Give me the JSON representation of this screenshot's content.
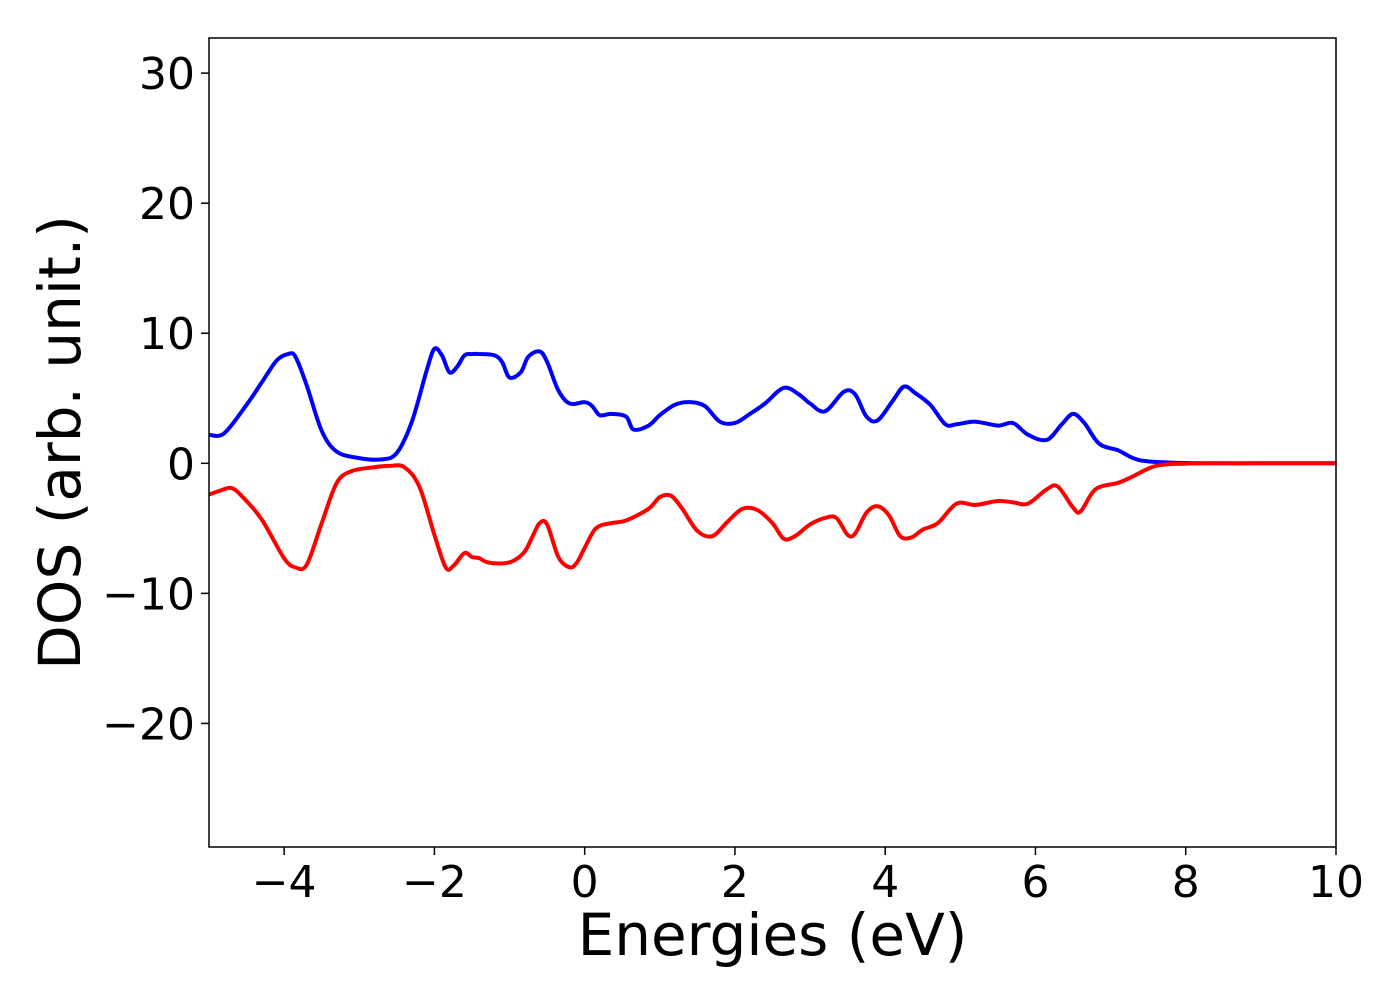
{
  "chart_data": {
    "type": "line",
    "title": "",
    "xlabel": "Energies (eV)",
    "ylabel": "DOS (arb. unit.)",
    "xlim": [
      -5,
      10
    ],
    "ylim": [
      -29.5,
      32.7
    ],
    "xticks": [
      -4,
      -2,
      0,
      2,
      4,
      6,
      8,
      10
    ],
    "yticks": [
      -20,
      -10,
      0,
      10,
      20,
      30
    ],
    "xtick_labels": [
      "−4",
      "−2",
      "0",
      "2",
      "4",
      "6",
      "8",
      "10"
    ],
    "ytick_labels": [
      "−20",
      "−10",
      "0",
      "10",
      "20",
      "30"
    ],
    "grid": false,
    "legend": "none",
    "series": [
      {
        "color": "#0000ff",
        "x": [
          -5.0,
          -4.8,
          -4.5,
          -4.3,
          -4.1,
          -3.95,
          -3.85,
          -3.7,
          -3.5,
          -3.3,
          -3.0,
          -2.7,
          -2.5,
          -2.3,
          -2.1,
          -2.0,
          -1.9,
          -1.8,
          -1.7,
          -1.6,
          -1.5,
          -1.4,
          -1.2,
          -1.1,
          -1.0,
          -0.85,
          -0.75,
          -0.6,
          -0.5,
          -0.35,
          -0.2,
          0.0,
          0.1,
          0.2,
          0.35,
          0.55,
          0.65,
          0.85,
          1.0,
          1.2,
          1.4,
          1.6,
          1.8,
          2.0,
          2.2,
          2.4,
          2.65,
          2.85,
          3.0,
          3.2,
          3.45,
          3.6,
          3.75,
          3.9,
          4.1,
          4.25,
          4.4,
          4.6,
          4.8,
          4.95,
          5.2,
          5.5,
          5.7,
          5.9,
          6.15,
          6.35,
          6.5,
          6.65,
          6.85,
          7.1,
          7.3,
          7.5,
          8.0,
          8.5,
          9.0,
          10.0
        ],
        "y": [
          2.2,
          2.3,
          4.5,
          6.2,
          7.9,
          8.4,
          8.2,
          6.0,
          2.5,
          0.9,
          0.4,
          0.3,
          0.8,
          3.2,
          7.2,
          8.8,
          8.3,
          7.0,
          7.4,
          8.3,
          8.4,
          8.4,
          8.3,
          7.8,
          6.6,
          7.0,
          8.2,
          8.6,
          7.8,
          5.6,
          4.6,
          4.7,
          4.4,
          3.7,
          3.8,
          3.6,
          2.6,
          2.9,
          3.7,
          4.5,
          4.7,
          4.4,
          3.2,
          3.1,
          3.8,
          4.6,
          5.8,
          5.3,
          4.6,
          4.0,
          5.5,
          5.3,
          3.6,
          3.3,
          4.8,
          5.9,
          5.4,
          4.5,
          3.0,
          3.0,
          3.2,
          2.9,
          3.1,
          2.2,
          1.8,
          3.0,
          3.8,
          3.1,
          1.5,
          1.0,
          0.4,
          0.15,
          0.02,
          0.0,
          0.0,
          0.0
        ]
      },
      {
        "color": "#ff0000",
        "x": [
          -5.0,
          -4.85,
          -4.7,
          -4.55,
          -4.3,
          -4.0,
          -3.85,
          -3.7,
          -3.5,
          -3.3,
          -3.1,
          -2.8,
          -2.6,
          -2.4,
          -2.2,
          -2.0,
          -1.85,
          -1.75,
          -1.6,
          -1.5,
          -1.4,
          -1.3,
          -1.1,
          -0.95,
          -0.8,
          -0.7,
          -0.6,
          -0.5,
          -0.35,
          -0.2,
          -0.1,
          0.0,
          0.15,
          0.35,
          0.55,
          0.85,
          1.0,
          1.15,
          1.3,
          1.5,
          1.7,
          1.9,
          2.1,
          2.3,
          2.5,
          2.65,
          2.8,
          3.0,
          3.2,
          3.35,
          3.5,
          3.6,
          3.75,
          3.9,
          4.05,
          4.2,
          4.35,
          4.5,
          4.7,
          4.95,
          5.2,
          5.5,
          5.7,
          5.9,
          6.15,
          6.3,
          6.5,
          6.6,
          6.8,
          7.1,
          7.3,
          7.6,
          8.0,
          8.5,
          9.0,
          10.0
        ],
        "y": [
          -2.4,
          -2.1,
          -1.9,
          -2.6,
          -4.3,
          -7.3,
          -8.0,
          -7.8,
          -4.6,
          -1.5,
          -0.6,
          -0.3,
          -0.2,
          -0.3,
          -1.8,
          -5.5,
          -8.0,
          -7.9,
          -6.9,
          -7.2,
          -7.3,
          -7.6,
          -7.7,
          -7.5,
          -6.8,
          -5.7,
          -4.6,
          -4.7,
          -7.2,
          -8.0,
          -7.6,
          -6.5,
          -5.0,
          -4.6,
          -4.4,
          -3.5,
          -2.6,
          -2.5,
          -3.5,
          -5.2,
          -5.6,
          -4.5,
          -3.5,
          -3.6,
          -4.6,
          -5.8,
          -5.6,
          -4.7,
          -4.2,
          -4.2,
          -5.5,
          -5.4,
          -3.8,
          -3.3,
          -4.0,
          -5.6,
          -5.7,
          -5.1,
          -4.6,
          -3.1,
          -3.2,
          -2.9,
          -3.0,
          -3.1,
          -2.0,
          -1.8,
          -3.4,
          -3.7,
          -2.0,
          -1.5,
          -1.0,
          -0.2,
          -0.02,
          0.0,
          0.0,
          0.0
        ]
      }
    ]
  }
}
